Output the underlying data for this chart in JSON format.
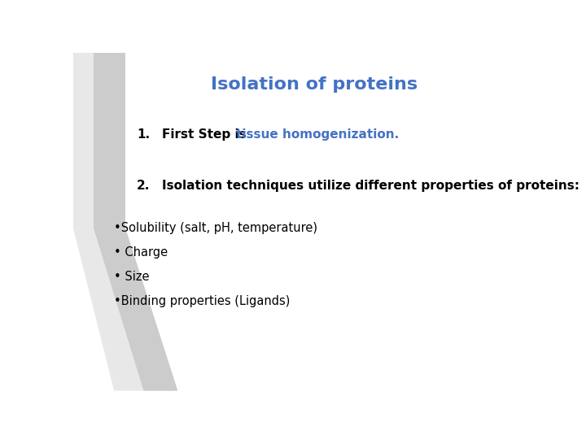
{
  "title": "Isolation of proteins",
  "title_color": "#4472C4",
  "title_fontsize": 16,
  "background_color": "#ffffff",
  "item1_number": "1.",
  "item1_bold": "First Step is ",
  "item1_colored": "tissue homogenization.",
  "item1_colored_color": "#4472C4",
  "item2_number": "2.",
  "item2_bold": "Isolation techniques utilize different properties of proteins:",
  "bullets": [
    "•Solubility (salt, pH, temperature)",
    "• Charge",
    "• Size",
    "•Binding properties (Ligands)"
  ],
  "text_color": "#000000",
  "bold_fontsize": 11,
  "bullet_fontsize": 10.5,
  "stripe_light": "#e8e8e8",
  "stripe_dark": "#cccccc"
}
